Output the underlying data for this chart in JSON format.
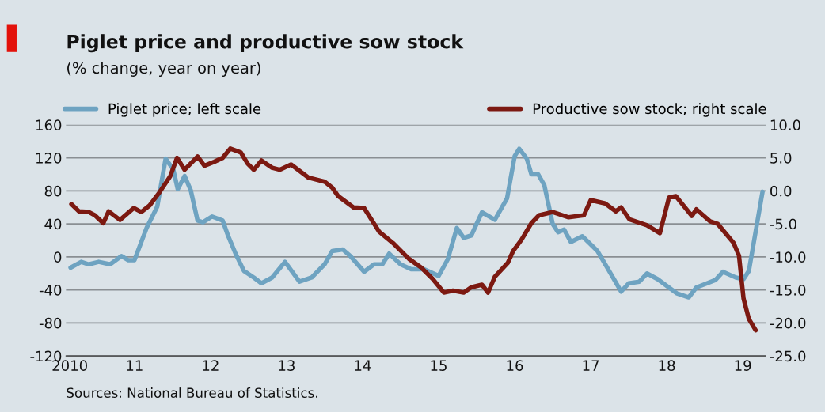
{
  "chart_data": {
    "type": "line",
    "title": "Piglet price and productive sow stock",
    "subtitle": "(% change, year on year)",
    "annotations": [
      "Sources: National Bureau of Statistics."
    ],
    "xlim": [
      2010.1,
      2019.3
    ],
    "xticks": [
      {
        "value": 2010.15,
        "label": "2010"
      },
      {
        "value": 2011,
        "label": "11"
      },
      {
        "value": 2012,
        "label": "12"
      },
      {
        "value": 2013,
        "label": "13"
      },
      {
        "value": 2014,
        "label": "14"
      },
      {
        "value": 2015,
        "label": "15"
      },
      {
        "value": 2016,
        "label": "16"
      },
      {
        "value": 2017,
        "label": "17"
      },
      {
        "value": 2018,
        "label": "18"
      },
      {
        "value": 2019,
        "label": "19"
      }
    ],
    "ylim": [
      -120,
      160
    ],
    "yticks": [
      -120,
      -80,
      -40,
      0,
      40,
      80,
      120,
      160
    ],
    "y2lim": [
      -25,
      10
    ],
    "y2ticks": [
      {
        "value": -25,
        "label": "-25.0"
      },
      {
        "value": -20,
        "label": "-20.0"
      },
      {
        "value": -15,
        "label": "-15.0"
      },
      {
        "value": -10,
        "label": "-10.0"
      },
      {
        "value": -5,
        "label": "-5.0"
      },
      {
        "value": 0,
        "label": "0.0"
      },
      {
        "value": 5,
        "label": "5.0"
      },
      {
        "value": 10,
        "label": "10.0"
      }
    ],
    "grid": "y",
    "legend": "top",
    "series": [
      {
        "name": "Piglet price; left scale",
        "color": "#6ea3c1",
        "x": [
          2010.16,
          2010.3,
          2010.4,
          2010.53,
          2010.68,
          2010.83,
          2010.92,
          2011.0,
          2011.16,
          2011.3,
          2011.41,
          2011.51,
          2011.57,
          2011.66,
          2011.74,
          2011.83,
          2011.9,
          2012.02,
          2012.16,
          2012.23,
          2012.33,
          2012.44,
          2012.57,
          2012.67,
          2012.81,
          2012.98,
          2013.17,
          2013.33,
          2013.5,
          2013.6,
          2013.74,
          2013.84,
          2014.02,
          2014.15,
          2014.26,
          2014.35,
          2014.5,
          2014.64,
          2014.81,
          2015.0,
          2015.12,
          2015.24,
          2015.33,
          2015.43,
          2015.57,
          2015.74,
          2015.9,
          2016.0,
          2016.06,
          2016.16,
          2016.22,
          2016.31,
          2016.39,
          2016.5,
          2016.57,
          2016.65,
          2016.74,
          2016.89,
          2017.09,
          2017.4,
          2017.5,
          2017.64,
          2017.74,
          2017.88,
          2018.13,
          2018.29,
          2018.39,
          2018.64,
          2018.74,
          2018.91,
          2019.01,
          2019.08,
          2019.26
        ],
        "values": [
          -13,
          -6,
          -9,
          -6,
          -9,
          1,
          -4,
          -4,
          35,
          61,
          119,
          106,
          82,
          98,
          81,
          44,
          42,
          49,
          44,
          26,
          4,
          -17,
          -25,
          -32,
          -25,
          -6,
          -30,
          -25,
          -9,
          7,
          9,
          1,
          -18,
          -9,
          -9,
          4,
          -9,
          -15,
          -15,
          -23,
          -3,
          35,
          23,
          26,
          54,
          45,
          71,
          122,
          131,
          119,
          100,
          100,
          87,
          40,
          30,
          33,
          18,
          25,
          7,
          -42,
          -32,
          -30,
          -20,
          -27,
          -44,
          -49,
          -37,
          -28,
          -18,
          -25,
          -27,
          -17,
          79
        ]
      },
      {
        "name": "Productive sow stock; right scale",
        "color": "#7c1911",
        "axis": "y2",
        "x": [
          2010.17,
          2010.27,
          2010.4,
          2010.48,
          2010.59,
          2010.66,
          2010.81,
          2010.99,
          2011.09,
          2011.2,
          2011.33,
          2011.47,
          2011.56,
          2011.66,
          2011.83,
          2011.92,
          2012.05,
          2012.16,
          2012.26,
          2012.4,
          2012.49,
          2012.57,
          2012.67,
          2012.81,
          2012.91,
          2013.06,
          2013.29,
          2013.5,
          2013.6,
          2013.68,
          2013.88,
          2014.02,
          2014.22,
          2014.4,
          2014.61,
          2014.77,
          2014.92,
          2015.07,
          2015.19,
          2015.33,
          2015.43,
          2015.57,
          2015.65,
          2015.74,
          2015.91,
          2015.98,
          2016.09,
          2016.22,
          2016.32,
          2016.43,
          2016.5,
          2016.71,
          2016.91,
          2017.0,
          2017.19,
          2017.33,
          2017.4,
          2017.51,
          2017.74,
          2017.91,
          2018.03,
          2018.12,
          2018.33,
          2018.39,
          2018.57,
          2018.67,
          2018.88,
          2018.95,
          2019.01,
          2019.08,
          2019.17
        ],
        "values": [
          -2.0,
          -3.1,
          -3.2,
          -3.7,
          -4.9,
          -3.1,
          -4.4,
          -2.6,
          -3.2,
          -2.2,
          -0.2,
          2.2,
          5.0,
          3.2,
          5.2,
          3.8,
          4.4,
          5.0,
          6.4,
          5.8,
          4.1,
          3.2,
          4.6,
          3.5,
          3.2,
          4.0,
          2.0,
          1.4,
          0.5,
          -0.8,
          -2.5,
          -2.6,
          -6.2,
          -7.9,
          -10.3,
          -11.6,
          -13.3,
          -15.4,
          -15.1,
          -15.4,
          -14.6,
          -14.2,
          -15.4,
          -13.0,
          -10.9,
          -9.1,
          -7.4,
          -4.9,
          -3.7,
          -3.4,
          -3.2,
          -4.0,
          -3.7,
          -1.4,
          -1.9,
          -3.1,
          -2.5,
          -4.3,
          -5.2,
          -6.4,
          -1.0,
          -0.8,
          -3.8,
          -2.8,
          -4.6,
          -5.0,
          -7.9,
          -9.8,
          -16.3,
          -19.4,
          -21.1
        ]
      }
    ]
  }
}
